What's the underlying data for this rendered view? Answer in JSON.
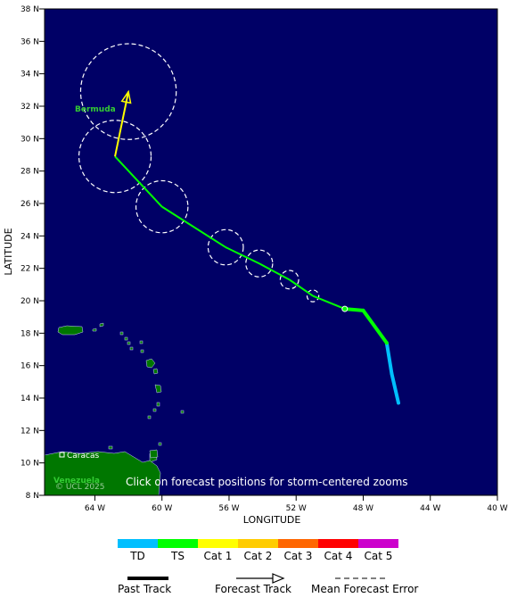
{
  "map": {
    "y_ticks": [
      "38 N",
      "36 N",
      "34 N",
      "32 N",
      "30 N",
      "28 N",
      "26 N",
      "24 N",
      "22 N",
      "20 N",
      "18 N",
      "16 N",
      "14 N",
      "12 N",
      "10 N",
      "8 N"
    ],
    "x_ticks": [
      "64 W",
      "60 W",
      "56 W",
      "52 W",
      "48 W",
      "44 W",
      "40 W"
    ],
    "x_axis_title": "LONGITUDE",
    "y_axis_title": "LATITUDE",
    "labels": {
      "bermuda": "Bermuda",
      "caracas": "Caracas",
      "venezuela": "Venezuela",
      "copyright": "© UCL 2025",
      "hint": "Click on forecast positions for storm-centered zooms"
    },
    "colors": {
      "ocean": "#000066",
      "land": "#007700",
      "td": "#00bfff",
      "ts": "#00ff00",
      "forecast": "#ffff33",
      "cone": "#ffffff"
    }
  },
  "track": {
    "past": [
      {
        "lon": -45.9,
        "lat": 13.7,
        "cat": "TD"
      },
      {
        "lon": -46.3,
        "lat": 15.5,
        "cat": "TD"
      },
      {
        "lon": -46.6,
        "lat": 17.4,
        "cat": "TS"
      },
      {
        "lon": -48.0,
        "lat": 19.4,
        "cat": "TS"
      },
      {
        "lon": -49.1,
        "lat": 19.5,
        "cat": "TS"
      }
    ],
    "forecast": [
      {
        "lon": -49.1,
        "lat": 19.5,
        "cat": "TS",
        "error_radius": 0
      },
      {
        "lon": -51.0,
        "lat": 20.3,
        "cat": "TS",
        "error_radius": 0.35
      },
      {
        "lon": -52.4,
        "lat": 21.3,
        "cat": "TS",
        "error_radius": 0.55
      },
      {
        "lon": -54.2,
        "lat": 22.3,
        "cat": "TS",
        "error_radius": 0.8
      },
      {
        "lon": -56.2,
        "lat": 23.3,
        "cat": "TS",
        "error_radius": 1.05
      },
      {
        "lon": -60.0,
        "lat": 25.8,
        "cat": "TS",
        "error_radius": 1.55
      },
      {
        "lon": -62.8,
        "lat": 28.9,
        "cat": "TS",
        "error_radius": 2.15
      },
      {
        "lon": -62.0,
        "lat": 32.9,
        "cat": "Cat 1",
        "error_radius": 2.85
      }
    ]
  },
  "legend": {
    "categories": [
      {
        "label": "TD",
        "color": "#00bfff"
      },
      {
        "label": "TS",
        "color": "#00ff00"
      },
      {
        "label": "Cat 1",
        "color": "#ffff00"
      },
      {
        "label": "Cat 2",
        "color": "#ffcc00"
      },
      {
        "label": "Cat 3",
        "color": "#ff6600"
      },
      {
        "label": "Cat 4",
        "color": "#ff0000"
      },
      {
        "label": "Cat 5",
        "color": "#cc00cc"
      }
    ],
    "past_track": "Past Track",
    "forecast_track": "Forecast Track",
    "mean_error": "Mean Forecast Error"
  }
}
